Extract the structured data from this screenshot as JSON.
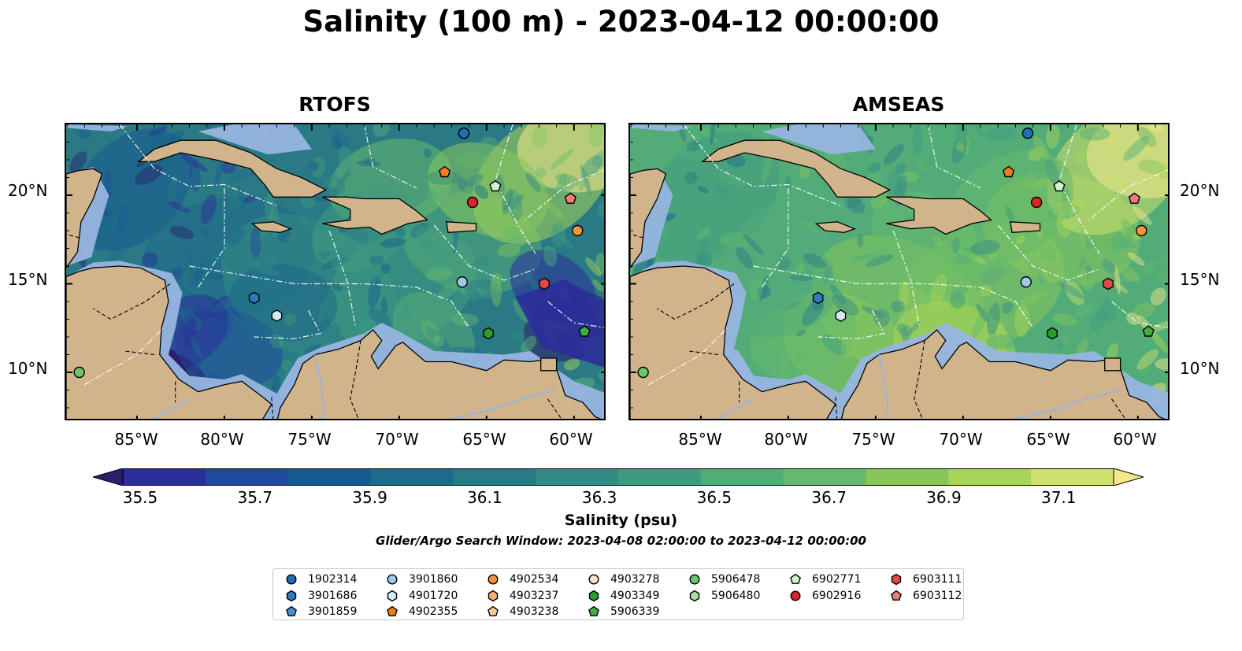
{
  "title": "Salinity (100 m) - 2023-04-12 00:00:00",
  "panels": [
    {
      "title": "RTOFS",
      "side": "left"
    },
    {
      "title": "AMSEAS",
      "side": "right"
    }
  ],
  "lat_ticks": [
    "20°N",
    "15°N",
    "10°N"
  ],
  "lon_ticks": [
    "85°W",
    "80°W",
    "75°W",
    "70°W",
    "65°W",
    "60°W"
  ],
  "colorbar": {
    "label": "Salinity (psu)",
    "ticks": [
      "35.5",
      "35.7",
      "35.9",
      "36.1",
      "36.3",
      "36.5",
      "36.7",
      "36.9",
      "37.1"
    ],
    "colors": [
      "#2a1e6e",
      "#2b2d9a",
      "#1f4a9c",
      "#165a8f",
      "#1d6a8b",
      "#2a7a86",
      "#348a84",
      "#3f9a80",
      "#52ac78",
      "#66b96c",
      "#86c65c",
      "#a8d557",
      "#cfe06c",
      "#f5e88a"
    ],
    "extend": "both"
  },
  "window_text": "Glider/Argo Search Window: 2023-04-08 02:00:00 to 2023-04-12 00:00:00",
  "legend": [
    {
      "id": "1902314",
      "marker": "circle",
      "color": "#1f6fb5"
    },
    {
      "id": "3901686",
      "marker": "hexagon",
      "color": "#2a7cc0"
    },
    {
      "id": "3901859",
      "marker": "pentagon",
      "color": "#4a90d0"
    },
    {
      "id": "3901860",
      "marker": "circle",
      "color": "#9ecae8"
    },
    {
      "id": "4901720",
      "marker": "hexagon",
      "color": "#d6ebf7"
    },
    {
      "id": "4902355",
      "marker": "pentagon",
      "color": "#f07e1b"
    },
    {
      "id": "4902534",
      "marker": "circle",
      "color": "#f5923a"
    },
    {
      "id": "4903237",
      "marker": "hexagon",
      "color": "#f9ae6a"
    },
    {
      "id": "4903238",
      "marker": "pentagon",
      "color": "#fbc896"
    },
    {
      "id": "4903278",
      "marker": "circle",
      "color": "#fde0c8"
    },
    {
      "id": "4903349",
      "marker": "hexagon",
      "color": "#2a9d2a"
    },
    {
      "id": "5906339",
      "marker": "pentagon",
      "color": "#3fae3f"
    },
    {
      "id": "5906478",
      "marker": "circle",
      "color": "#6cc46c"
    },
    {
      "id": "5906480",
      "marker": "hexagon",
      "color": "#a5e0a0"
    },
    {
      "id": "6902771",
      "marker": "pentagon",
      "color": "#d4f2cf"
    },
    {
      "id": "6902916",
      "marker": "circle",
      "color": "#d62728"
    },
    {
      "id": "6903111",
      "marker": "hexagon",
      "color": "#e24848"
    },
    {
      "id": "6903112",
      "marker": "pentagon",
      "color": "#f27a7a"
    }
  ],
  "floats": [
    {
      "id": "1902314",
      "lon": -66.3,
      "lat": 23.5
    },
    {
      "id": "4902355",
      "lon": -67.4,
      "lat": 21.3
    },
    {
      "id": "6902771",
      "lon": -64.5,
      "lat": 20.5
    },
    {
      "id": "6902916",
      "lon": -65.8,
      "lat": 19.6
    },
    {
      "id": "6903112",
      "lon": -60.2,
      "lat": 19.8
    },
    {
      "id": "4902534",
      "lon": -59.8,
      "lat": 18.0
    },
    {
      "id": "3901860",
      "lon": -66.4,
      "lat": 15.1
    },
    {
      "id": "6903111",
      "lon": -61.7,
      "lat": 15.0
    },
    {
      "id": "3901686",
      "lon": -78.3,
      "lat": 14.2
    },
    {
      "id": "4901720",
      "lon": -77.0,
      "lat": 13.2
    },
    {
      "id": "4903349",
      "lon": -64.9,
      "lat": 12.2
    },
    {
      "id": "5906339",
      "lon": -59.4,
      "lat": 12.3
    },
    {
      "id": "5906478",
      "lon": -88.3,
      "lat": 10.0
    }
  ]
}
